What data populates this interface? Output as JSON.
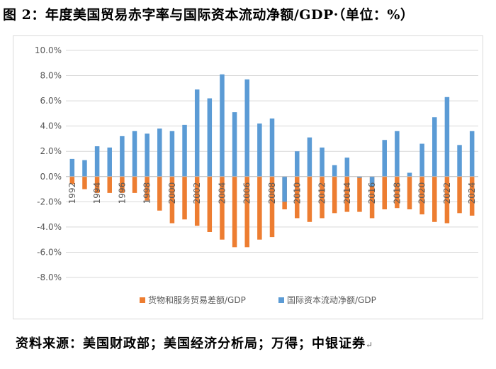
{
  "figure": {
    "title": "图 2：年度美国贸易赤字率与国际资本流动净额/GDP·（单位：%）",
    "source": "资料来源：美国财政部；美国经济分析局；万得；中银证券",
    "source_mark": "↵"
  },
  "colors": {
    "trade": "#ED7D31",
    "capital": "#5B9BD5",
    "grid": "#D9D9D9",
    "axis": "#BFBFBF",
    "text": "#595959"
  },
  "chart_data": {
    "type": "bar",
    "title": "",
    "xlabel": "",
    "ylabel": "",
    "ylim": [
      -8,
      10
    ],
    "yticks": [
      -8,
      -6,
      -4,
      -2,
      0,
      2,
      4,
      6,
      8,
      10
    ],
    "ytick_labels": [
      "-8.0%",
      "-6.0%",
      "-4.0%",
      "-2.0%",
      "0.0%",
      "2.0%",
      "4.0%",
      "6.0%",
      "8.0%",
      "10.0%"
    ],
    "grid": true,
    "legend_position": "bottom",
    "categories": [
      "1992",
      "1993",
      "1994",
      "1995",
      "1996",
      "1997",
      "1998",
      "1999",
      "2000",
      "2001",
      "2002",
      "2003",
      "2004",
      "2005",
      "2006",
      "2007",
      "2008",
      "2009",
      "2010",
      "2011",
      "2012",
      "2013",
      "2014",
      "2015",
      "2016",
      "2017",
      "2018",
      "2019",
      "2020",
      "2021",
      "2022",
      "2023",
      "2024"
    ],
    "category_labels": [
      "1992",
      "",
      "1994",
      "",
      "1996",
      "",
      "1998",
      "",
      "2000",
      "",
      "2002",
      "",
      "2004",
      "",
      "2006",
      "",
      "2008",
      "",
      "2010",
      "",
      "2012",
      "",
      "2014",
      "",
      "2016",
      "",
      "2018",
      "",
      "2020",
      "",
      "2022",
      "",
      "2024"
    ],
    "series": [
      {
        "name": "货物和服务贸易差额/GDP",
        "color": "#ED7D31",
        "values": [
          -0.6,
          -1.0,
          -1.3,
          -1.3,
          -1.3,
          -1.3,
          -1.9,
          -2.7,
          -3.7,
          -3.4,
          -3.9,
          -4.4,
          -5.0,
          -5.6,
          -5.6,
          -5.0,
          -4.8,
          -2.6,
          -3.3,
          -3.6,
          -3.3,
          -2.9,
          -2.8,
          -2.8,
          -3.3,
          -2.6,
          -2.5,
          -2.6,
          -3.0,
          -3.6,
          -3.7,
          -2.9,
          -3.1
        ]
      },
      {
        "name": "国际资本流动净额/GDP",
        "color": "#5B9BD5",
        "values": [
          1.4,
          1.3,
          2.4,
          2.3,
          3.2,
          3.6,
          3.4,
          3.8,
          3.6,
          4.1,
          6.9,
          6.2,
          8.1,
          5.1,
          7.7,
          4.2,
          4.6,
          -2.0,
          2.0,
          3.1,
          2.3,
          0.9,
          1.5,
          -0.1,
          -0.8,
          2.9,
          3.6,
          0.3,
          2.6,
          4.7,
          6.3,
          2.5,
          3.6
        ]
      }
    ]
  }
}
